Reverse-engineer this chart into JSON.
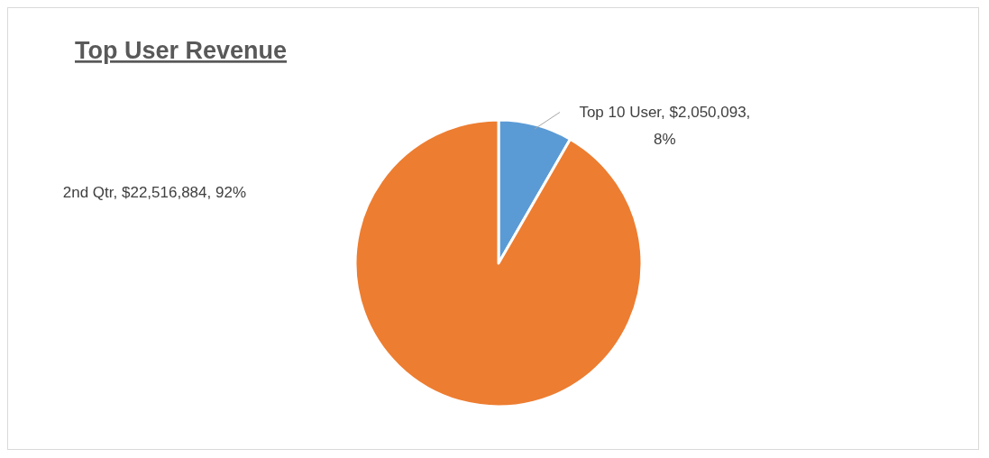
{
  "chart_data": {
    "type": "pie",
    "title": "Top User Revenue",
    "categories": [
      "Top 10 User",
      "2nd Qtr"
    ],
    "values": [
      2050093,
      22516884
    ],
    "colors": [
      "#5b9bd5",
      "#ed7d31"
    ],
    "value_labels": [
      "$2,050,093, 8%",
      "$22,516,884, 92%"
    ]
  }
}
